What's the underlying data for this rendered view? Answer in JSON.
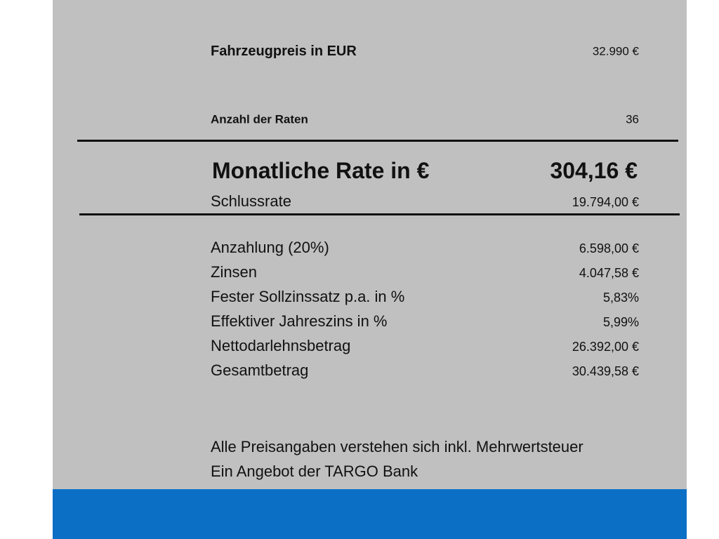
{
  "vehicle_price": {
    "label": "Fahrzeugpreis in EUR",
    "value": "32.990 €"
  },
  "installments": {
    "label": "Anzahl der Raten",
    "value": "36"
  },
  "monthly_rate": {
    "label": "Monatliche Rate in €",
    "value": "304,16 €"
  },
  "final_rate": {
    "label": "Schlussrate",
    "value": "19.794,00 €"
  },
  "details": [
    {
      "label": "Anzahlung (20%)",
      "value": "6.598,00 €"
    },
    {
      "label": "Zinsen",
      "value": "4.047,58 €"
    },
    {
      "label": "Fester Sollzinssatz p.a. in %",
      "value": "5,83%"
    },
    {
      "label": "Effektiver Jahreszins in %",
      "value": "5,99%"
    },
    {
      "label": "Nettodarlehnsbetrag",
      "value": "26.392,00 €"
    },
    {
      "label": "Gesamtbetrag",
      "value": "30.439,58 €"
    }
  ],
  "footer": [
    "Alle Preisangaben verstehen sich inkl. Mehrwertsteuer",
    "Ein Angebot der TARGO Bank"
  ]
}
